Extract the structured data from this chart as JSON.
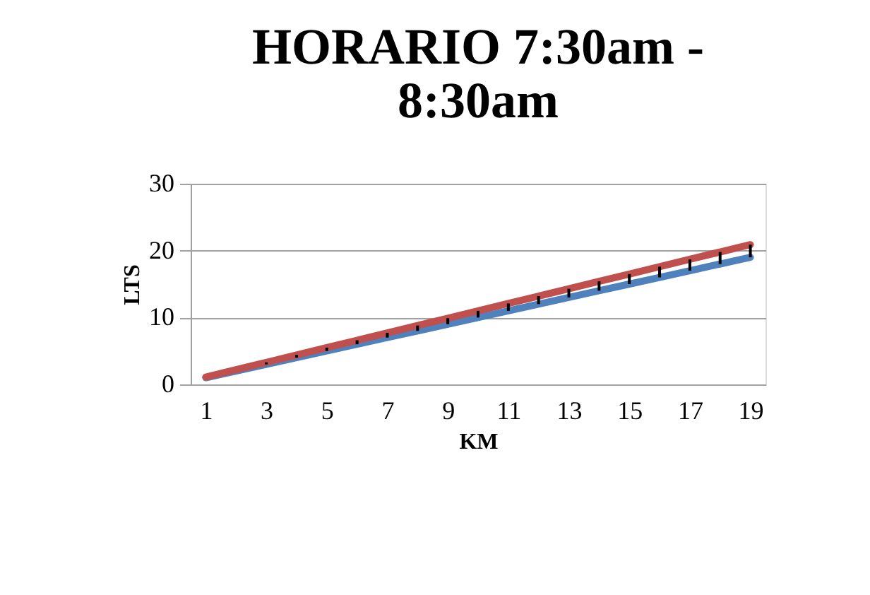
{
  "chart_data": {
    "type": "line",
    "title": "HORARIO 7:30am - 8:30am",
    "xlabel": "KM",
    "ylabel": "LTS",
    "x": [
      1,
      2,
      3,
      4,
      5,
      6,
      7,
      8,
      9,
      10,
      11,
      12,
      13,
      14,
      15,
      16,
      17,
      18,
      19
    ],
    "series": [
      {
        "color": "#4f81bd",
        "values": [
          1,
          2,
          3,
          4,
          5,
          6,
          7,
          8,
          9,
          10,
          11,
          12,
          13,
          14,
          15,
          16,
          17,
          18,
          19
        ]
      },
      {
        "color": "#c0504d",
        "values": [
          1.1,
          2.2,
          3.3,
          4.4,
          5.5,
          6.6,
          7.7,
          8.8,
          9.9,
          11,
          12.1,
          13.2,
          14.3,
          15.4,
          16.5,
          17.6,
          18.7,
          19.8,
          20.9
        ],
        "errors": [
          null,
          null,
          [
            3,
            3.3
          ],
          [
            4,
            4.4
          ],
          [
            5,
            5.5
          ],
          [
            6,
            6.6
          ],
          [
            7,
            7.7
          ],
          [
            8,
            8.8
          ],
          [
            9,
            9.9
          ],
          [
            10,
            11
          ],
          [
            11,
            12.1
          ],
          [
            12,
            13.2
          ],
          [
            13,
            14.3
          ],
          [
            14,
            15.4
          ],
          [
            15,
            16.5
          ],
          [
            16,
            17.6
          ],
          [
            17,
            18.7
          ],
          [
            18,
            19.8
          ],
          [
            19,
            20.9
          ]
        ]
      }
    ],
    "xlim": [
      0.5,
      19.5
    ],
    "xticks": [
      1,
      3,
      5,
      7,
      9,
      11,
      13,
      15,
      17,
      19
    ],
    "ylim": [
      0,
      30
    ],
    "yticks": [
      0,
      10,
      20,
      30
    ],
    "grid": "y",
    "marker": "none",
    "line_style": "solid"
  }
}
